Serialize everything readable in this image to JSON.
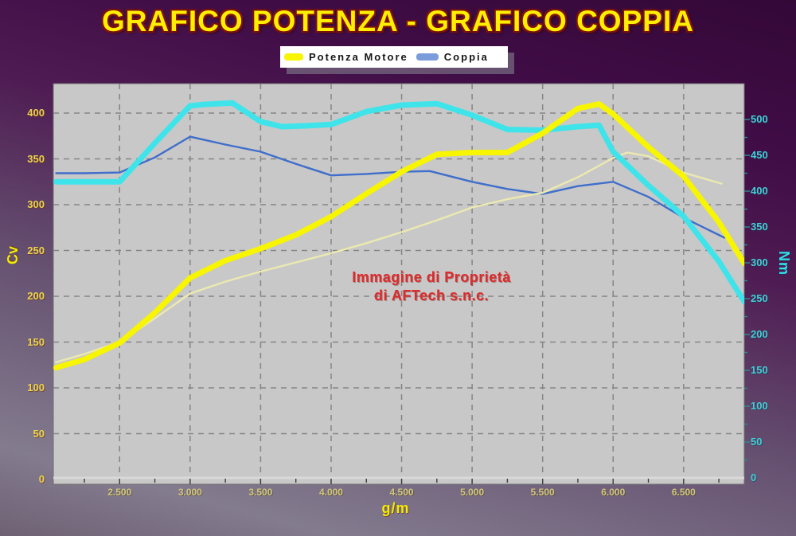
{
  "title": "GRAFICO POTENZA - GRAFICO COPPIA",
  "legend": {
    "items": [
      {
        "label": "Potenza Motore",
        "swatch_color": "#f7f500",
        "swatch_width": 24
      },
      {
        "label": "Coppia",
        "swatch_color": "#7b9cdb",
        "swatch_width": 28
      }
    ]
  },
  "watermark": {
    "line1": "Immagine di Proprietà",
    "line2": "di AFTech s.n.c.",
    "color": "#dd2a2a"
  },
  "axes": {
    "left": {
      "title": "Cv",
      "color": "#e9d44e",
      "tick_values": [
        0,
        50,
        100,
        150,
        200,
        250,
        300,
        350,
        400
      ]
    },
    "right": {
      "title": "Nm",
      "color": "#45ccd6",
      "tick_values": [
        0,
        50,
        100,
        150,
        200,
        250,
        300,
        350,
        400,
        450,
        500
      ],
      "minor_step": 25
    },
    "x": {
      "title": "g/m",
      "color": "#cfc77c",
      "tick_values": [
        2500,
        3000,
        3500,
        4000,
        4500,
        5000,
        5500,
        6000,
        6500
      ],
      "tick_labels": [
        "2.500",
        "3.000",
        "3.500",
        "4.000",
        "4.500",
        "5.000",
        "5.500",
        "6.000",
        "6.500"
      ],
      "minor_step": 250,
      "minor_start": 2250,
      "minor_end": 6750
    }
  },
  "plot": {
    "background": "#c8c8c8",
    "gridline_color": "#858585",
    "axisline_color": "#d9d9d9",
    "tick_color": "#3d3d3d"
  },
  "chart_data": {
    "type": "line",
    "title": "GRAFICO POTENZA - GRAFICO COPPIA",
    "xlabel": "g/m",
    "ylabel_left": "Cv",
    "ylabel_right": "Nm",
    "x_range_rpm": [
      2030,
      6930
    ],
    "left_axis_range": [
      0,
      400
    ],
    "right_axis_range": [
      0,
      500
    ],
    "grid": "dashed",
    "legend_position": "top-center",
    "series": [
      {
        "name": "coppia-originale",
        "legend": null,
        "axis": "right",
        "unit": "Nm",
        "color": "#3f6ecb",
        "width": 2.4,
        "points": [
          [
            2050,
            425
          ],
          [
            2250,
            425
          ],
          [
            2500,
            426
          ],
          [
            2750,
            447
          ],
          [
            3000,
            476
          ],
          [
            3250,
            465
          ],
          [
            3500,
            455
          ],
          [
            3750,
            438
          ],
          [
            4000,
            422
          ],
          [
            4250,
            424
          ],
          [
            4500,
            427
          ],
          [
            4700,
            428
          ],
          [
            5000,
            413
          ],
          [
            5250,
            403
          ],
          [
            5500,
            396
          ],
          [
            5750,
            407
          ],
          [
            6000,
            413
          ],
          [
            6250,
            392
          ],
          [
            6500,
            363
          ],
          [
            6790,
            335
          ]
        ]
      },
      {
        "name": "potenza-originale",
        "legend": null,
        "axis": "left",
        "unit": "Cv",
        "color": "#ece9b0",
        "width": 2.4,
        "points": [
          [
            2050,
            128
          ],
          [
            2250,
            137
          ],
          [
            2500,
            150
          ],
          [
            2750,
            176
          ],
          [
            3000,
            203
          ],
          [
            3250,
            216
          ],
          [
            3500,
            227
          ],
          [
            3750,
            237
          ],
          [
            4000,
            247
          ],
          [
            4250,
            258
          ],
          [
            4500,
            270
          ],
          [
            4750,
            283
          ],
          [
            5000,
            297
          ],
          [
            5250,
            306
          ],
          [
            5500,
            313
          ],
          [
            5750,
            330
          ],
          [
            6000,
            351
          ],
          [
            6100,
            357
          ],
          [
            6250,
            353
          ],
          [
            6500,
            335
          ],
          [
            6770,
            323
          ]
        ]
      },
      {
        "name": "coppia",
        "legend": "Coppia",
        "axis": "right",
        "unit": "Nm",
        "color": "#3ee4ea",
        "width": 7,
        "points": [
          [
            2050,
            413
          ],
          [
            2250,
            413
          ],
          [
            2500,
            413
          ],
          [
            2750,
            467
          ],
          [
            3000,
            519
          ],
          [
            3100,
            521
          ],
          [
            3300,
            523
          ],
          [
            3500,
            497
          ],
          [
            3650,
            490
          ],
          [
            3800,
            491
          ],
          [
            4000,
            493
          ],
          [
            4250,
            511
          ],
          [
            4500,
            520
          ],
          [
            4750,
            522
          ],
          [
            5000,
            506
          ],
          [
            5250,
            486
          ],
          [
            5500,
            485
          ],
          [
            5750,
            490
          ],
          [
            5900,
            492
          ],
          [
            6000,
            455
          ],
          [
            6250,
            408
          ],
          [
            6500,
            365
          ],
          [
            6750,
            302
          ],
          [
            6930,
            246
          ]
        ]
      },
      {
        "name": "potenza-motore",
        "legend": "Potenza Motore",
        "axis": "left",
        "unit": "Cv",
        "color": "#f7f500",
        "width": 7,
        "points": [
          [
            2050,
            122
          ],
          [
            2250,
            131
          ],
          [
            2500,
            149
          ],
          [
            2750,
            182
          ],
          [
            3000,
            220
          ],
          [
            3250,
            239
          ],
          [
            3500,
            252
          ],
          [
            3750,
            267
          ],
          [
            4000,
            287
          ],
          [
            4250,
            312
          ],
          [
            4500,
            336
          ],
          [
            4750,
            355
          ],
          [
            5000,
            357
          ],
          [
            5250,
            357
          ],
          [
            5500,
            378
          ],
          [
            5750,
            405
          ],
          [
            5900,
            410
          ],
          [
            6000,
            399
          ],
          [
            6250,
            363
          ],
          [
            6500,
            331
          ],
          [
            6750,
            281
          ],
          [
            6930,
            236
          ]
        ]
      }
    ]
  }
}
